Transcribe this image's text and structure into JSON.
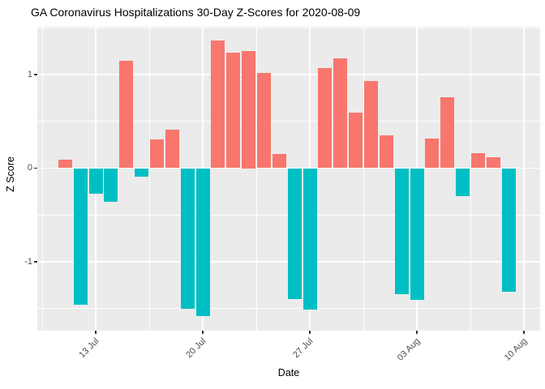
{
  "chart_data": {
    "type": "bar",
    "title": "GA Coronavirus Hospitalizations 30-Day Z-Scores for 2020-08-09",
    "xlabel": "Date",
    "ylabel": "Z Score",
    "dates": [
      "2020-07-11",
      "2020-07-12",
      "2020-07-13",
      "2020-07-14",
      "2020-07-15",
      "2020-07-16",
      "2020-07-17",
      "2020-07-18",
      "2020-07-19",
      "2020-07-20",
      "2020-07-21",
      "2020-07-22",
      "2020-07-23",
      "2020-07-24",
      "2020-07-25",
      "2020-07-26",
      "2020-07-27",
      "2020-07-28",
      "2020-07-29",
      "2020-07-30",
      "2020-07-31",
      "2020-08-01",
      "2020-08-02",
      "2020-08-03",
      "2020-08-04",
      "2020-08-05",
      "2020-08-06",
      "2020-08-07",
      "2020-08-08",
      "2020-08-09"
    ],
    "values": [
      0.09,
      -1.46,
      -0.27,
      -0.36,
      1.15,
      -0.09,
      0.31,
      0.41,
      -1.5,
      -1.58,
      1.36,
      1.23,
      1.25,
      1.02,
      0.15,
      -1.4,
      -1.51,
      1.07,
      1.17,
      0.59,
      0.93,
      0.35,
      -1.35,
      -1.41,
      0.32,
      0.76,
      -0.3,
      0.16,
      0.12,
      -1.32
    ],
    "x_ticks": [
      {
        "label": "13 Jul",
        "day": 2
      },
      {
        "label": "20 Jul",
        "day": 9
      },
      {
        "label": "27 Jul",
        "day": 16
      },
      {
        "label": "03 Aug",
        "day": 23
      },
      {
        "label": "10 Aug",
        "day": 30
      }
    ],
    "x_minor_days": [
      -1.5,
      5.5,
      12.5,
      19.5,
      26.5
    ],
    "y_ticks": [
      {
        "label": "1",
        "value": 1
      },
      {
        "label": "0",
        "value": 0
      },
      {
        "label": "-1",
        "value": -1
      }
    ],
    "y_minor": [
      1.5,
      0.5,
      -0.5,
      -1.5
    ],
    "ylim": [
      -1.74,
      1.51
    ],
    "grid": "on",
    "legend": "none",
    "colors": {
      "positive": "#F8766D",
      "negative": "#00BFC4",
      "panel_bg": "#EBEBEB",
      "gridline": "#FFFFFF",
      "tick_label": "#4D4D4D",
      "axis_text": "#000000"
    }
  }
}
